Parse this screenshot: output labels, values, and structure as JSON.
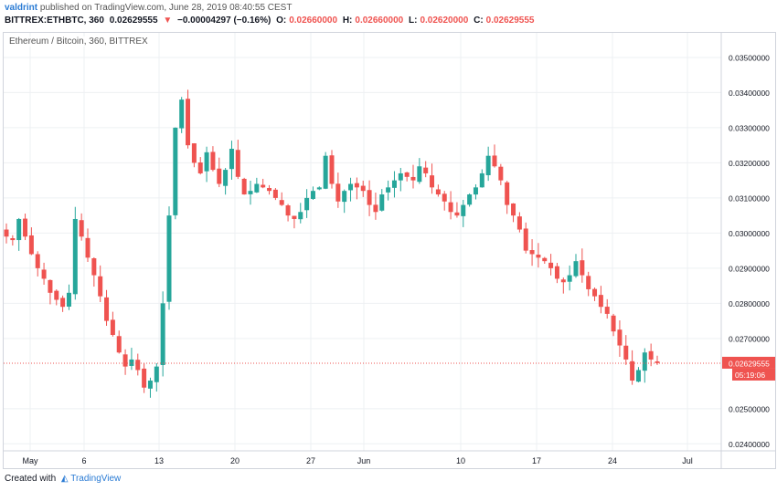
{
  "header": {
    "author": "valdrint",
    "published": "published on TradingView.com, June 28, 2019 08:40:55 CEST",
    "symbol": "BITTREX:ETHBTC, 360",
    "price": "0.02629555",
    "arrow": "▼",
    "change": "−0.00004297 (−0.16%)",
    "o_label": "O:",
    "o_value": "0.02660000",
    "h_label": "H:",
    "h_value": "0.02660000",
    "l_label": "L:",
    "l_value": "0.02620000",
    "c_label": "C:",
    "c_value": "0.02629555"
  },
  "legend": "Ethereum / Bitcoin, 360, BITTREX",
  "footer": {
    "created_with": "Created with",
    "brand": "TradingView"
  },
  "chart_data": {
    "type": "candlestick",
    "y_ticks": [
      "0.03500000",
      "0.03400000",
      "0.03300000",
      "0.03200000",
      "0.03100000",
      "0.03000000",
      "0.02900000",
      "0.02800000",
      "0.02700000",
      "0.02500000",
      "0.02400000"
    ],
    "x_ticks": [
      "May",
      "6",
      "13",
      "20",
      "27",
      "Jun",
      "10",
      "17",
      "24",
      "Jul"
    ],
    "ylim": [
      0.0238,
      0.0357
    ],
    "last_price": 0.02629555,
    "last_price_label": "0.02629555",
    "countdown_label": "05:19:06",
    "colors": {
      "up": "#26a69a",
      "down": "#ef5350",
      "grid": "#eef0f3"
    },
    "close_path": [
      0.0299,
      0.0298,
      0.0304,
      0.0299,
      0.0294,
      0.029,
      0.0287,
      0.0283,
      0.0281,
      0.0279,
      0.0283,
      0.0304,
      0.0299,
      0.0293,
      0.0288,
      0.0282,
      0.0275,
      0.0271,
      0.0266,
      0.0262,
      0.0264,
      0.0261,
      0.0256,
      0.0258,
      0.0262,
      0.028,
      0.0305,
      0.033,
      0.0338,
      0.0325,
      0.032,
      0.0317,
      0.0323,
      0.0318,
      0.0314,
      0.0318,
      0.0324,
      0.0316,
      0.0311,
      0.0312,
      0.0314,
      0.0313,
      0.0312,
      0.031,
      0.0308,
      0.0305,
      0.0304,
      0.0306,
      0.031,
      0.0312,
      0.0313,
      0.0322,
      0.0314,
      0.0309,
      0.0312,
      0.0314,
      0.0313,
      0.0312,
      0.0308,
      0.0306,
      0.0311,
      0.0313,
      0.0315,
      0.0317,
      0.0316,
      0.0315,
      0.0319,
      0.0317,
      0.0313,
      0.0311,
      0.0309,
      0.0306,
      0.0305,
      0.0308,
      0.0311,
      0.0313,
      0.0317,
      0.0322,
      0.0319,
      0.0315,
      0.0308,
      0.0305,
      0.0301,
      0.0295,
      0.0294,
      0.0293,
      0.0292,
      0.029,
      0.0287,
      0.0286,
      0.0288,
      0.0292,
      0.0288,
      0.0284,
      0.0282,
      0.0279,
      0.0277,
      0.0272,
      0.0268,
      0.0264,
      0.0258,
      0.0261,
      0.0266,
      0.0264,
      0.0263
    ]
  }
}
